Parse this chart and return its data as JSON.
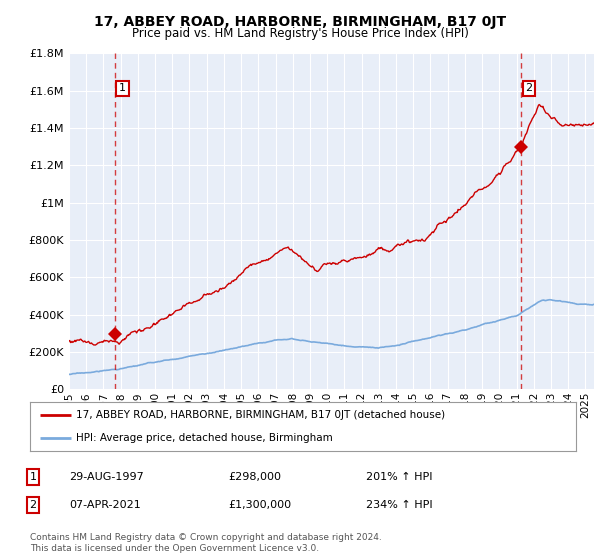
{
  "title": "17, ABBEY ROAD, HARBORNE, BIRMINGHAM, B17 0JT",
  "subtitle": "Price paid vs. HM Land Registry's House Price Index (HPI)",
  "legend_line1": "17, ABBEY ROAD, HARBORNE, BIRMINGHAM, B17 0JT (detached house)",
  "legend_line2": "HPI: Average price, detached house, Birmingham",
  "transaction1_date": "29-AUG-1997",
  "transaction1_price": "£298,000",
  "transaction1_hpi": "201% ↑ HPI",
  "transaction2_date": "07-APR-2021",
  "transaction2_price": "£1,300,000",
  "transaction2_hpi": "234% ↑ HPI",
  "footer": "Contains HM Land Registry data © Crown copyright and database right 2024.\nThis data is licensed under the Open Government Licence v3.0.",
  "ylim": [
    0,
    1800000
  ],
  "yticks": [
    0,
    200000,
    400000,
    600000,
    800000,
    1000000,
    1200000,
    1400000,
    1600000,
    1800000
  ],
  "ytick_labels": [
    "£0",
    "£200K",
    "£400K",
    "£600K",
    "£800K",
    "£1M",
    "£1.2M",
    "£1.4M",
    "£1.6M",
    "£1.8M"
  ],
  "background_color": "#ffffff",
  "plot_bg_color": "#e8eef8",
  "grid_color": "#ffffff",
  "red_line_color": "#cc0000",
  "blue_line_color": "#7aaadd",
  "transaction1_x": 1997.66,
  "transaction1_y": 298000,
  "transaction2_x": 2021.27,
  "transaction2_y": 1300000,
  "xmin": 1995.0,
  "xmax": 2025.5
}
